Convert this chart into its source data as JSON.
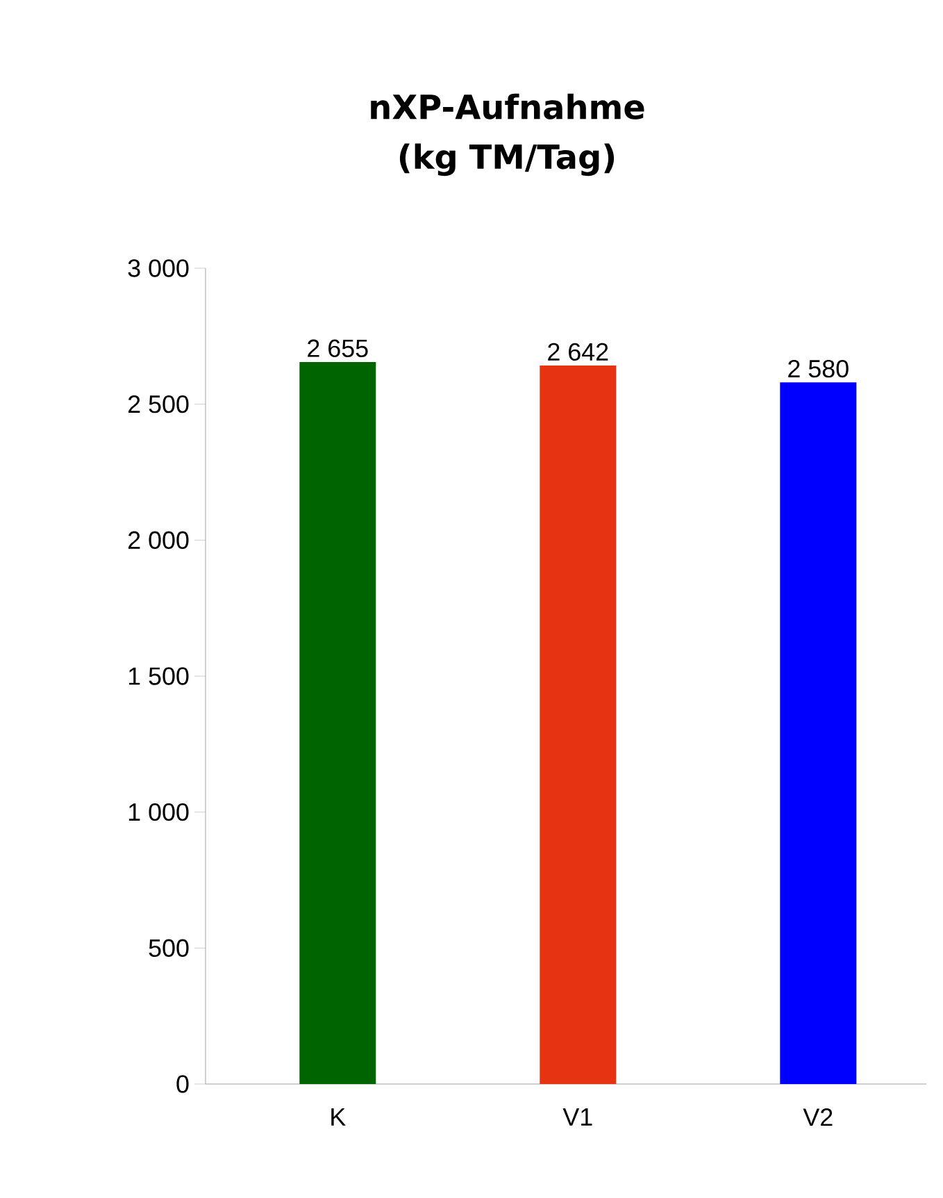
{
  "chart_data": {
    "type": "bar",
    "title": "nXP-Aufnahme (kg TM/Tag)",
    "categories": [
      "K",
      "V1",
      "V2"
    ],
    "values": [
      2655,
      2642,
      2580
    ],
    "colors": [
      "#006400",
      "#e63312",
      "#0000ff"
    ],
    "value_labels": [
      "2 655",
      "2 642",
      "2 580"
    ],
    "ylim": [
      0,
      3000
    ],
    "yticks": [
      {
        "value": 0,
        "label": "0"
      },
      {
        "value": 500,
        "label": "500"
      },
      {
        "value": 1000,
        "label": "1 000"
      },
      {
        "value": 1500,
        "label": "1 500"
      },
      {
        "value": 2000,
        "label": "2 000"
      },
      {
        "value": 2500,
        "label": "2 500"
      },
      {
        "value": 3000,
        "label": "3 000"
      }
    ],
    "grid": false
  }
}
